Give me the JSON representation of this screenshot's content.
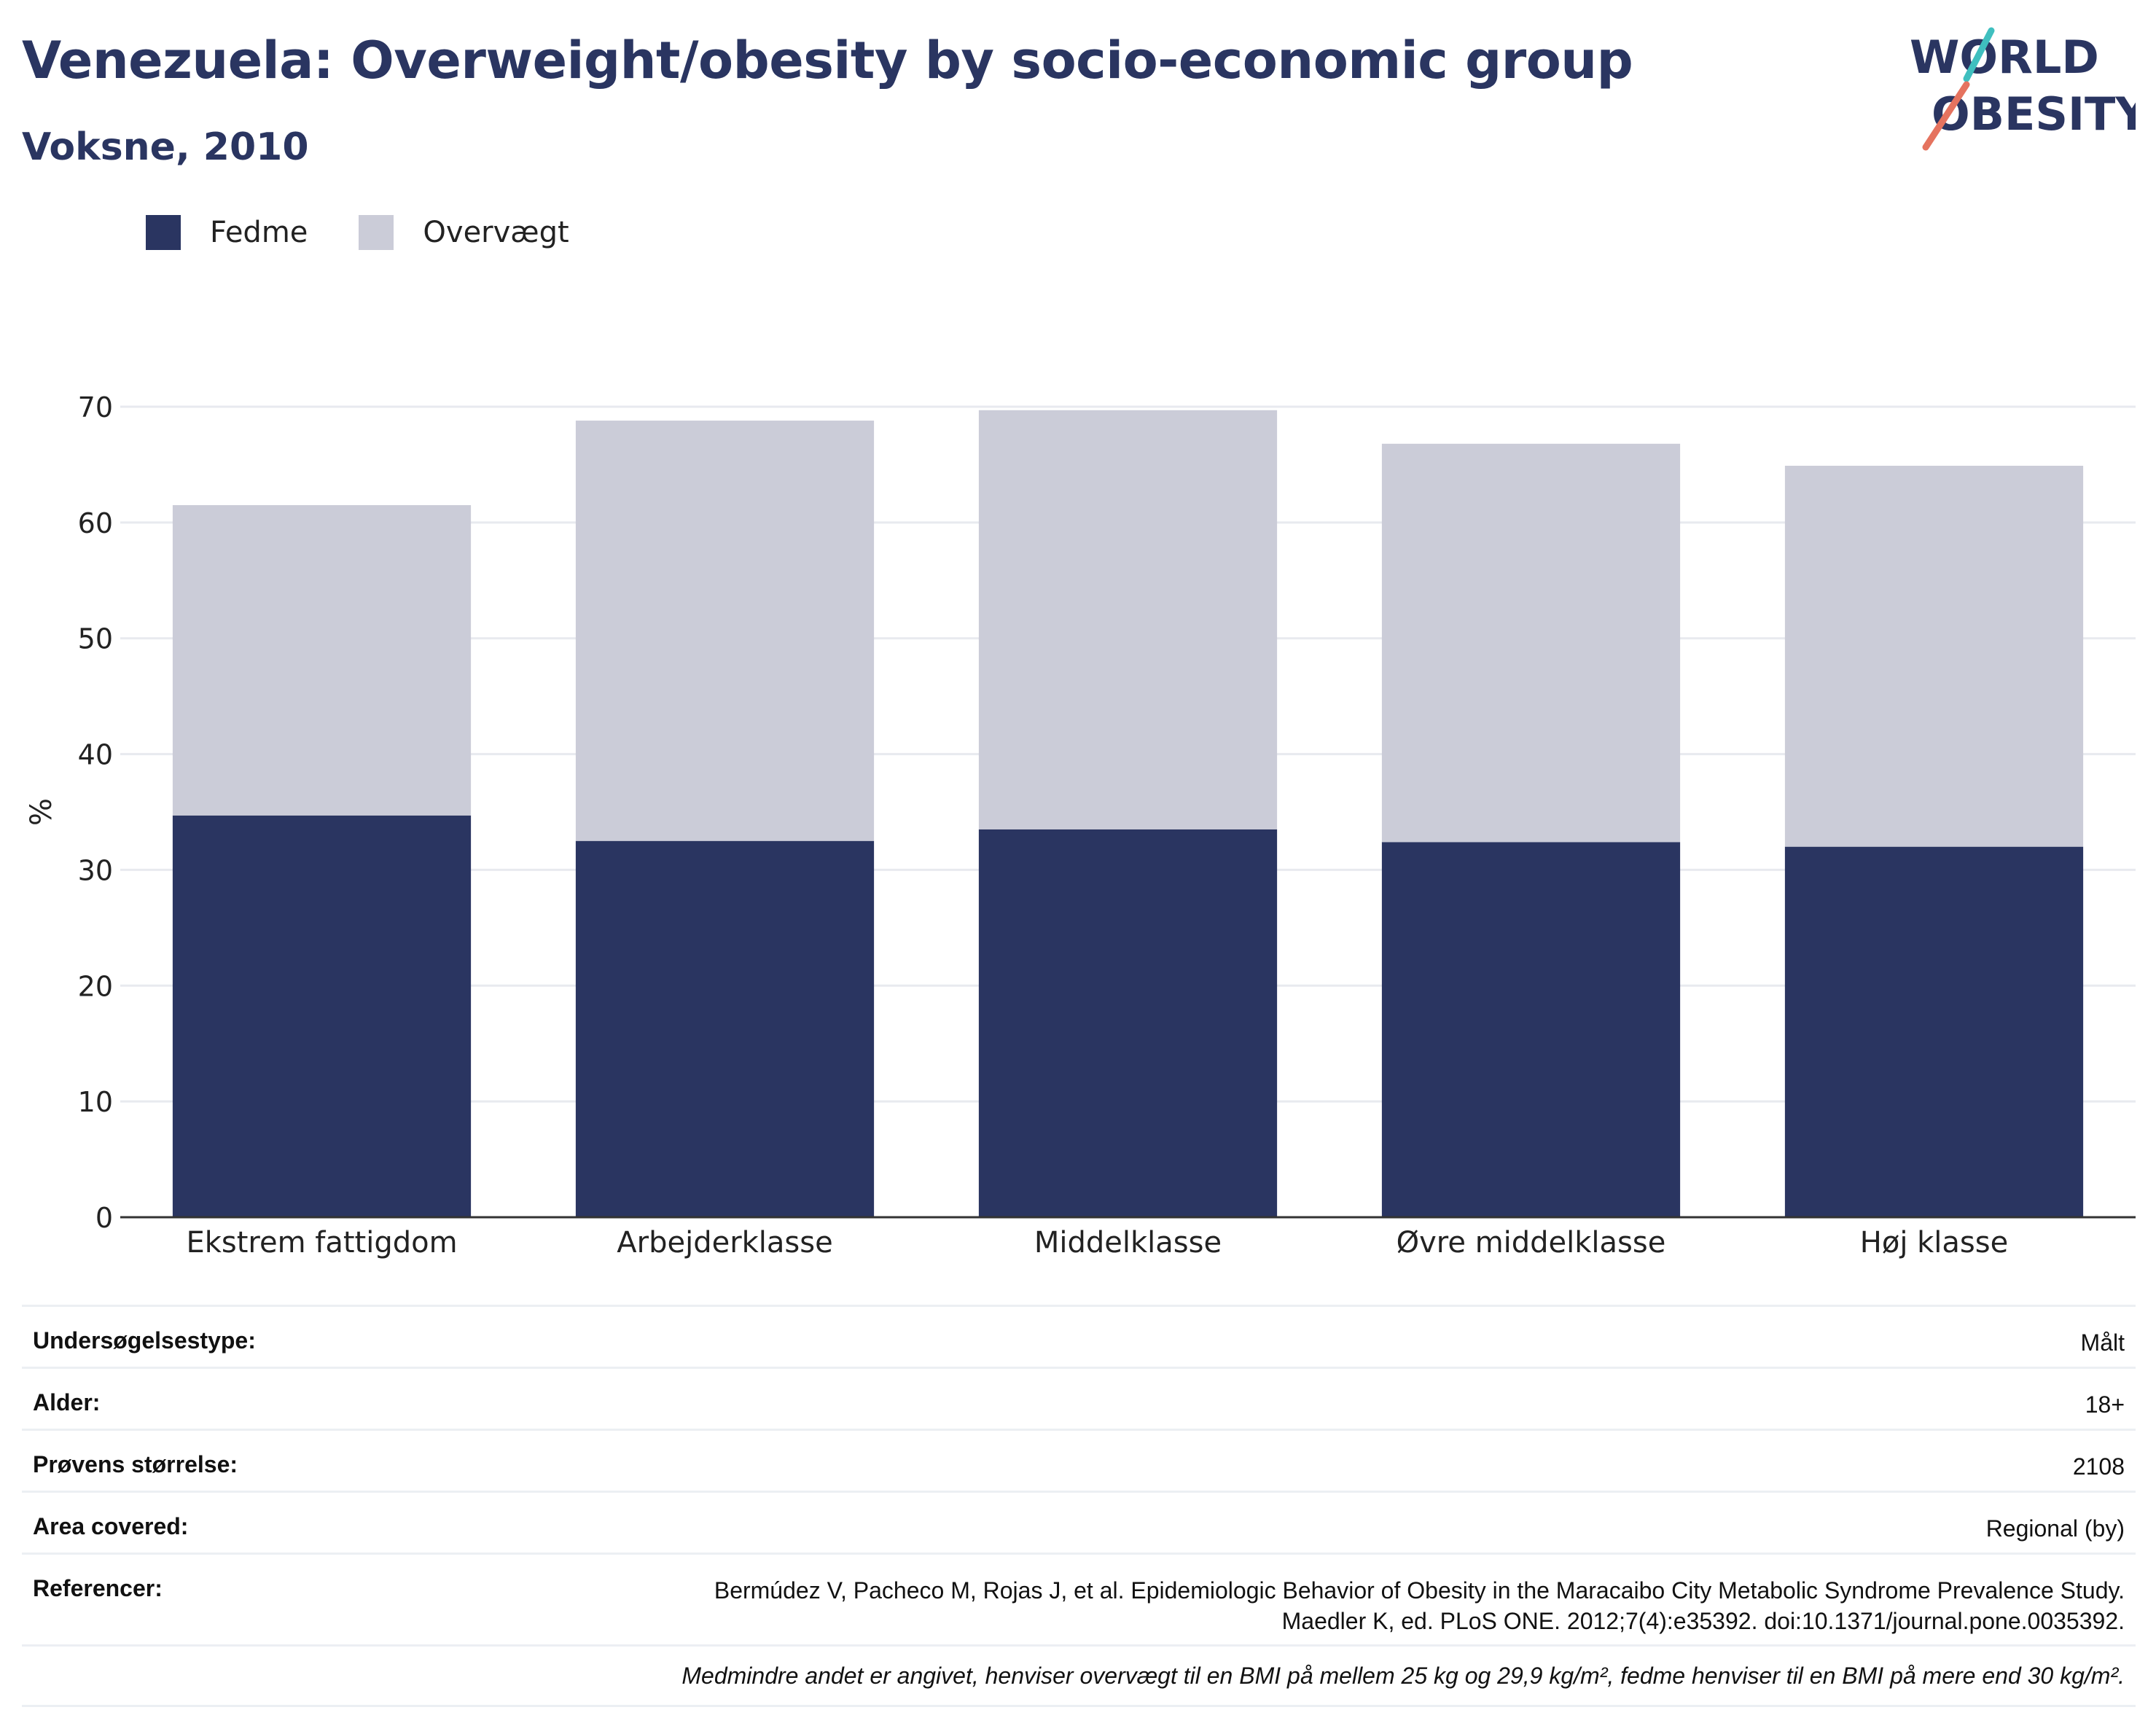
{
  "header": {
    "title": "Venezuela: Overweight/obesity by socio-economic group",
    "subtitle": "Voksne, 2010"
  },
  "logo": {
    "line1": "WORLD",
    "line2": "OBESITY"
  },
  "colors": {
    "fedme": "#2a3561",
    "overvaegt": "#cbccd8",
    "text": "#2a3561"
  },
  "legend": {
    "items": [
      "Fedme",
      "Overvægt"
    ]
  },
  "chart_data": {
    "type": "bar",
    "stacked": true,
    "categories": [
      "Ekstrem fattigdom",
      "Arbejderklasse",
      "Middelklasse",
      "Øvre middelklasse",
      "Høj klasse"
    ],
    "series": [
      {
        "name": "Fedme",
        "values": [
          34.7,
          32.5,
          33.5,
          32.4,
          32.0
        ]
      },
      {
        "name": "Overvægt",
        "values": [
          26.8,
          36.3,
          36.2,
          34.4,
          32.9
        ]
      }
    ],
    "ylabel": "%",
    "ylim": [
      0,
      70
    ],
    "yticks": [
      0,
      10,
      20,
      30,
      40,
      50,
      60,
      70
    ],
    "grid": true,
    "legend_position": "top-left"
  },
  "info": {
    "rows": [
      {
        "label": "Undersøgelsestype:",
        "value": "Målt"
      },
      {
        "label": "Alder:",
        "value": "18+"
      },
      {
        "label": "Prøvens størrelse:",
        "value": "2108"
      },
      {
        "label": "Area covered:",
        "value": "Regional (by)"
      },
      {
        "label": "Referencer:",
        "value_line1": "Bermúdez V, Pacheco M, Rojas J, et al. Epidemiologic Behavior of Obesity in the Maracaibo City Metabolic Syndrome Prevalence Study.",
        "value_line2": "Maedler K, ed. PLoS ONE. 2012;7(4):e35392. doi:10.1371/journal.pone.0035392."
      }
    ],
    "note": "Medmindre andet er angivet, henviser overvægt til en BMI på mellem 25 kg og 29,9 kg/m², fedme henviser til en BMI på mere end 30 kg/m²."
  }
}
